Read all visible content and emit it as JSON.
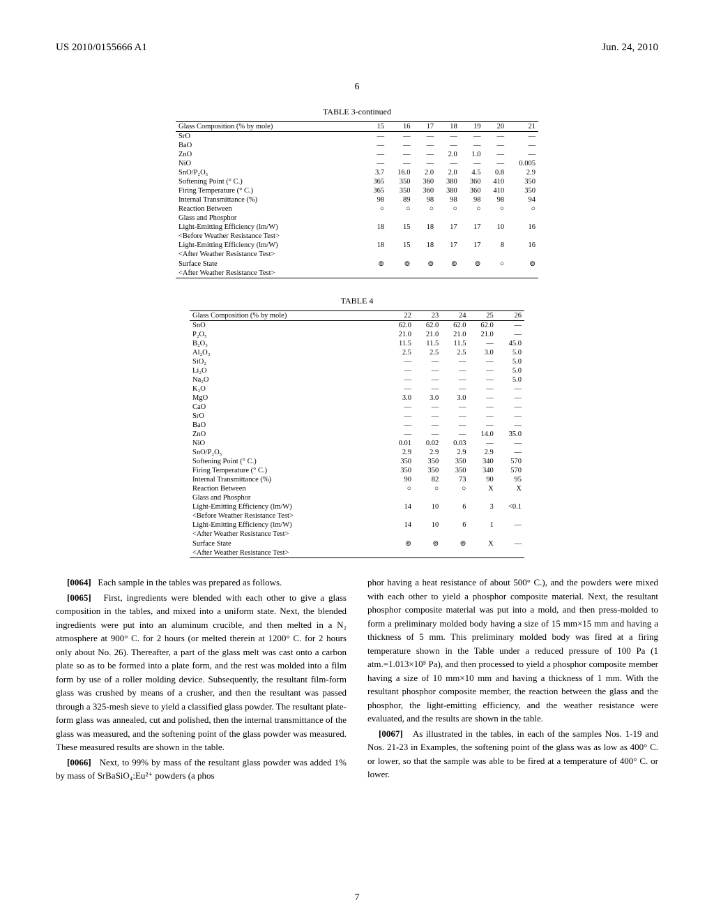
{
  "header": {
    "left": "US 2010/0155666 A1",
    "right": "Jun. 24, 2010"
  },
  "page_center": "6",
  "table3": {
    "title": "TABLE 3-continued",
    "header_label": "Glass Composition (% by mole)",
    "cols": [
      "15",
      "16",
      "17",
      "18",
      "19",
      "20",
      "21"
    ],
    "rows": [
      {
        "label": "SrO",
        "vals": [
          "—",
          "—",
          "—",
          "—",
          "—",
          "—",
          "—"
        ]
      },
      {
        "label": "BaO",
        "vals": [
          "—",
          "—",
          "—",
          "—",
          "—",
          "—",
          "—"
        ]
      },
      {
        "label": "ZnO",
        "vals": [
          "—",
          "—",
          "—",
          "2.0",
          "1.0",
          "—",
          "—"
        ]
      },
      {
        "label": "NiO",
        "vals": [
          "—",
          "—",
          "—",
          "—",
          "—",
          "—",
          "0.005"
        ]
      },
      {
        "label": "SnO/P₂O₅",
        "vals": [
          "3.7",
          "16.0",
          "2.0",
          "2.0",
          "4.5",
          "0.8",
          "2.9"
        ]
      },
      {
        "label": "Softening Point (° C.)",
        "vals": [
          "365",
          "350",
          "360",
          "380",
          "360",
          "410",
          "350"
        ]
      },
      {
        "label": "Firing Temperature (° C.)",
        "vals": [
          "365",
          "350",
          "360",
          "380",
          "360",
          "410",
          "350"
        ]
      },
      {
        "label": "Internal Transmittance (%)",
        "vals": [
          "98",
          "89",
          "98",
          "98",
          "98",
          "98",
          "94"
        ]
      },
      {
        "label": "Reaction Between",
        "vals": [
          "○",
          "○",
          "○",
          "○",
          "○",
          "○",
          "○"
        ]
      },
      {
        "label": "Glass and Phosphor",
        "vals": [
          "",
          "",
          "",
          "",
          "",
          "",
          ""
        ]
      },
      {
        "label": "Light-Emitting Efficiency (lm/W)",
        "vals": [
          "18",
          "15",
          "18",
          "17",
          "17",
          "10",
          "16"
        ]
      },
      {
        "label": "<Before Weather Resistance Test>",
        "vals": [
          "",
          "",
          "",
          "",
          "",
          "",
          ""
        ]
      },
      {
        "label": "Light-Emitting Efficiency (lm/W)",
        "vals": [
          "18",
          "15",
          "18",
          "17",
          "17",
          "8",
          "16"
        ]
      },
      {
        "label": "<After Weather Resistance Test>",
        "vals": [
          "",
          "",
          "",
          "",
          "",
          "",
          ""
        ]
      },
      {
        "label": "Surface State",
        "vals": [
          "⊚",
          "⊚",
          "⊚",
          "⊚",
          "⊚",
          "○",
          "⊚"
        ]
      },
      {
        "label": "<After Weather Resistance Test>",
        "vals": [
          "",
          "",
          "",
          "",
          "",
          "",
          ""
        ]
      }
    ]
  },
  "table4": {
    "title": "TABLE 4",
    "header_label": "Glass Composition (% by mole)",
    "cols": [
      "22",
      "23",
      "24",
      "25",
      "26"
    ],
    "rows": [
      {
        "label": "SnO",
        "vals": [
          "62.0",
          "62.0",
          "62.0",
          "62.0",
          "—"
        ]
      },
      {
        "label": "P₂O₅",
        "vals": [
          "21.0",
          "21.0",
          "21.0",
          "21.0",
          "—"
        ]
      },
      {
        "label": "B₂O₃",
        "vals": [
          "11.5",
          "11.5",
          "11.5",
          "—",
          "45.0"
        ]
      },
      {
        "label": "Al₂O₃",
        "vals": [
          "2.5",
          "2.5",
          "2.5",
          "3.0",
          "5.0"
        ]
      },
      {
        "label": "SiO₂",
        "vals": [
          "—",
          "—",
          "—",
          "—",
          "5.0"
        ]
      },
      {
        "label": "Li₂O",
        "vals": [
          "—",
          "—",
          "—",
          "—",
          "5.0"
        ]
      },
      {
        "label": "Na₂O",
        "vals": [
          "—",
          "—",
          "—",
          "—",
          "5.0"
        ]
      },
      {
        "label": "K₂O",
        "vals": [
          "—",
          "—",
          "—",
          "—",
          "—"
        ]
      },
      {
        "label": "MgO",
        "vals": [
          "3.0",
          "3.0",
          "3.0",
          "—",
          "—"
        ]
      },
      {
        "label": "CaO",
        "vals": [
          "—",
          "—",
          "—",
          "—",
          "—"
        ]
      },
      {
        "label": "SrO",
        "vals": [
          "—",
          "—",
          "—",
          "—",
          "—"
        ]
      },
      {
        "label": "BaO",
        "vals": [
          "—",
          "—",
          "—",
          "—",
          "—"
        ]
      },
      {
        "label": "ZnO",
        "vals": [
          "—",
          "—",
          "—",
          "14.0",
          "35.0"
        ]
      },
      {
        "label": "NiO",
        "vals": [
          "0.01",
          "0.02",
          "0.03",
          "—",
          "—"
        ]
      },
      {
        "label": "SnO/P₂O₅",
        "vals": [
          "2.9",
          "2.9",
          "2.9",
          "2.9",
          "—"
        ]
      },
      {
        "label": "Softening Point (° C.)",
        "vals": [
          "350",
          "350",
          "350",
          "340",
          "570"
        ]
      },
      {
        "label": "Firing Temperature (° C.)",
        "vals": [
          "350",
          "350",
          "350",
          "340",
          "570"
        ]
      },
      {
        "label": "Internal Transmittance (%)",
        "vals": [
          "90",
          "82",
          "73",
          "90",
          "95"
        ]
      },
      {
        "label": "Reaction Between",
        "vals": [
          "○",
          "○",
          "○",
          "X",
          "X"
        ]
      },
      {
        "label": "Glass and Phosphor",
        "vals": [
          "",
          "",
          "",
          "",
          ""
        ]
      },
      {
        "label": "Light-Emitting Efficiency (lm/W)",
        "vals": [
          "14",
          "10",
          "6",
          "3",
          "<0.1"
        ]
      },
      {
        "label": "<Before Weather Resistance Test>",
        "vals": [
          "",
          "",
          "",
          "",
          ""
        ]
      },
      {
        "label": "Light-Emitting Efficiency (lm/W)",
        "vals": [
          "14",
          "10",
          "6",
          "1",
          "—"
        ]
      },
      {
        "label": "<After Weather Resistance Test>",
        "vals": [
          "",
          "",
          "",
          "",
          ""
        ]
      },
      {
        "label": "Surface State",
        "vals": [
          "⊚",
          "⊚",
          "⊚",
          "X",
          "—"
        ]
      },
      {
        "label": "<After Weather Resistance Test>",
        "vals": [
          "",
          "",
          "",
          "",
          ""
        ]
      }
    ]
  },
  "paragraphs": {
    "p0064_num": "[0064]",
    "p0064": "Each sample in the tables was prepared as follows.",
    "p0065_num": "[0065]",
    "p0065": "First, ingredients were blended with each other to give a glass composition in the tables, and mixed into a uniform state. Next, the blended ingredients were put into an aluminum crucible, and then melted in a N₂ atmosphere at 900° C. for 2 hours (or melted therein at 1200° C. for 2 hours only about No. 26). Thereafter, a part of the glass melt was cast onto a carbon plate so as to be formed into a plate form, and the rest was molded into a film form by use of a roller molding device. Subsequently, the resultant film-form glass was crushed by means of a crusher, and then the resultant was passed through a 325-mesh sieve to yield a classified glass powder. The resultant plate-form glass was annealed, cut and polished, then the internal transmittance of the glass was measured, and the softening point of the glass powder was measured. These measured results are shown in the table.",
    "p0066_num": "[0066]",
    "p0066_a": "Next, to 99% by mass of the resultant glass powder was added 1% by mass of SrBaSiO₄:Eu²⁺ powders (a phos",
    "p0066_b": "phor having a heat resistance of about 500° C.), and the powders were mixed with each other to yield a phosphor composite material. Next, the resultant phosphor composite material was put into a mold, and then press-molded to form a preliminary molded body having a size of 15 mm×15 mm and having a thickness of 5 mm. This preliminary molded body was fired at a firing temperature shown in the Table under a reduced pressure of 100 Pa (1 atm.=1.013×10⁵ Pa), and then processed to yield a phosphor composite member having a size of 10 mm×10 mm and having a thickness of 1 mm. With the resultant phosphor composite member, the reaction between the glass and the phosphor, the light-emitting efficiency, and the weather resistance were evaluated, and the results are shown in the table.",
    "p0067_num": "[0067]",
    "p0067": "As illustrated in the tables, in each of the samples Nos. 1-19 and Nos. 21-23 in Examples, the softening point of the glass was as low as 400° C. or lower, so that the sample was able to be fired at a temperature of 400° C. or lower."
  },
  "foot_page": "7"
}
